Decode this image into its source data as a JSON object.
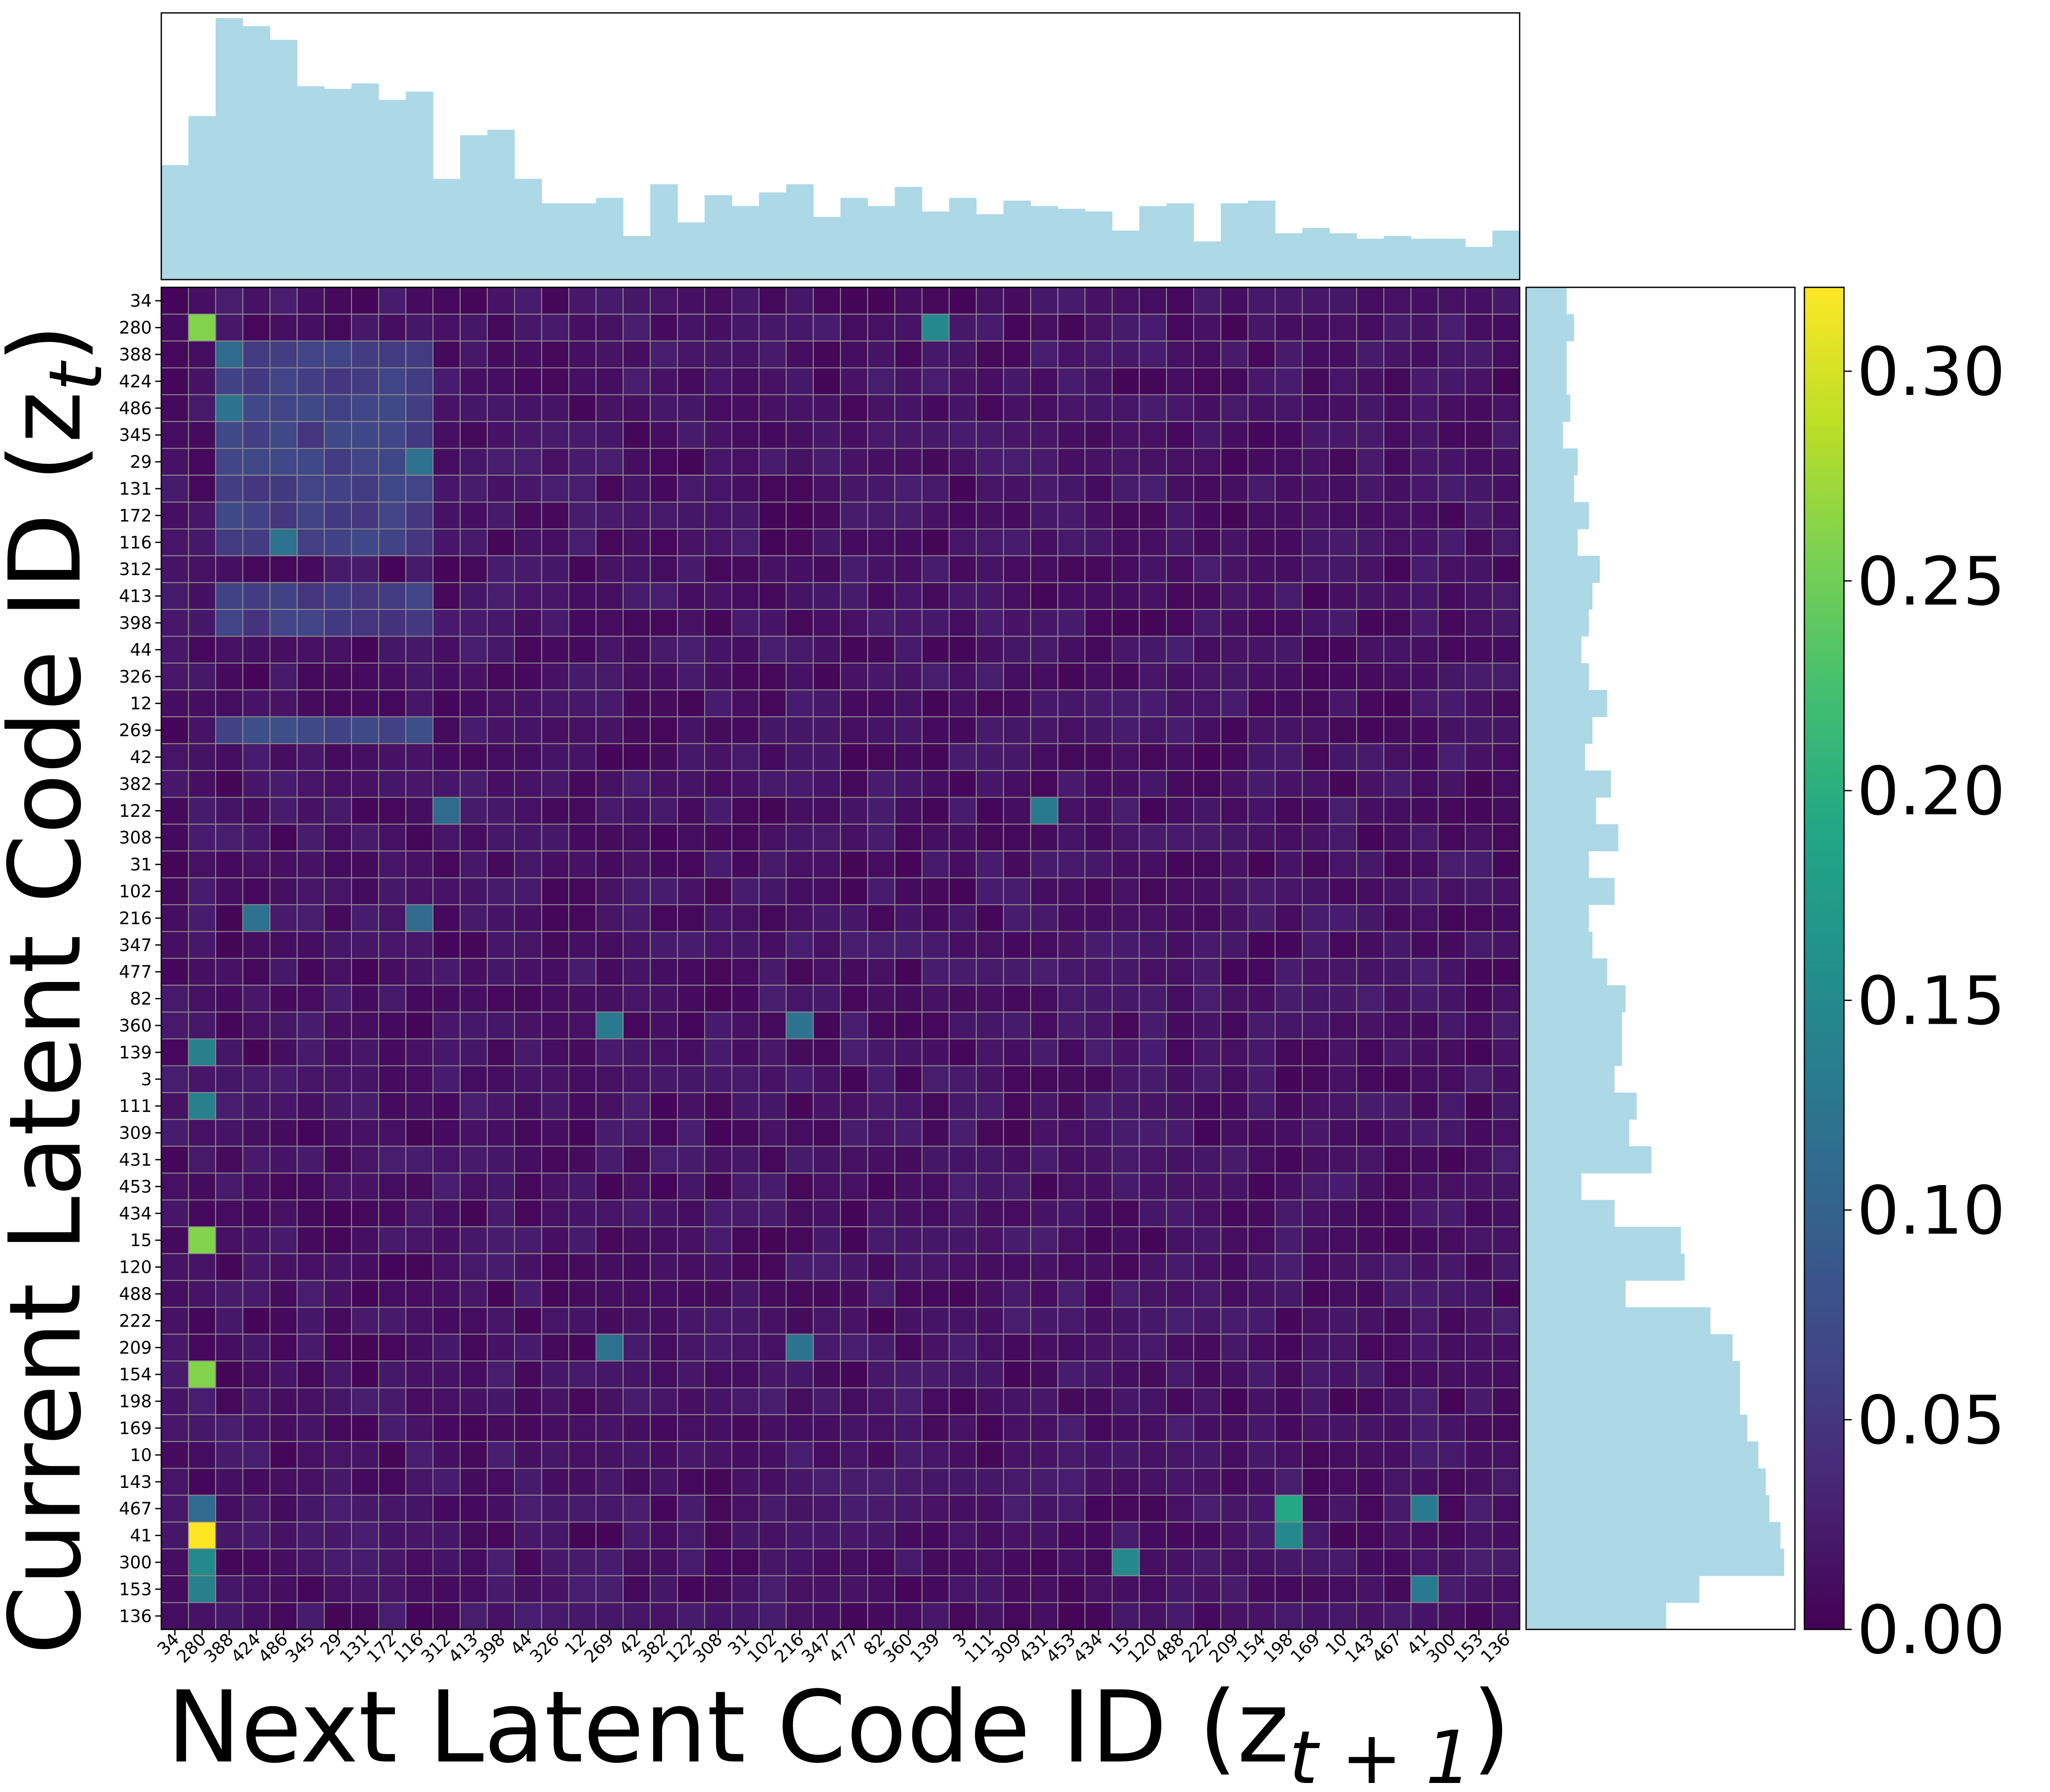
{
  "chart_data": {
    "type": "heatmap",
    "title": "",
    "xlabel": "Next Latent Code ID (z",
    "xlabel_sub": "t + 1",
    "xlabel_close": ")",
    "ylabel": "Current Latent Code ID (z",
    "ylabel_sub": "t",
    "ylabel_close": ")",
    "codes": [
      "34",
      "280",
      "388",
      "424",
      "486",
      "345",
      "29",
      "131",
      "172",
      "116",
      "312",
      "413",
      "398",
      "44",
      "326",
      "12",
      "269",
      "42",
      "382",
      "122",
      "308",
      "31",
      "102",
      "216",
      "347",
      "477",
      "82",
      "360",
      "139",
      "3",
      "111",
      "309",
      "431",
      "453",
      "434",
      "15",
      "120",
      "488",
      "222",
      "209",
      "154",
      "198",
      "169",
      "10",
      "143",
      "467",
      "41",
      "300",
      "153",
      "136"
    ],
    "colorbar": {
      "colormap": "viridis",
      "range": [
        0.0,
        0.32
      ],
      "ticks": [
        "0.00",
        "0.05",
        "0.10",
        "0.15",
        "0.20",
        "0.25",
        "0.30"
      ]
    },
    "top_histogram": {
      "color": "#add8e6",
      "values": [
        42,
        60,
        96,
        93,
        88,
        71,
        70,
        72,
        66,
        69,
        37,
        53,
        55,
        37,
        28,
        28,
        30,
        16,
        35,
        21,
        31,
        27,
        32,
        35,
        23,
        30,
        27,
        34,
        25,
        30,
        24,
        29,
        27,
        26,
        25,
        18,
        27,
        28,
        14,
        28,
        29,
        17,
        19,
        17,
        15,
        16,
        15,
        15,
        12,
        18
      ]
    },
    "right_histogram": {
      "color": "#add8e6",
      "values": [
        11,
        13,
        11,
        11,
        12,
        10,
        14,
        13,
        17,
        14,
        20,
        18,
        17,
        15,
        17,
        22,
        18,
        16,
        23,
        19,
        25,
        17,
        24,
        17,
        18,
        22,
        27,
        26,
        26,
        24,
        30,
        28,
        34,
        15,
        24,
        42,
        43,
        27,
        50,
        56,
        58,
        58,
        60,
        63,
        65,
        66,
        69,
        70,
        47,
        38
      ]
    },
    "hot_cells": [
      {
        "row": "280",
        "col": "280",
        "value": 0.26
      },
      {
        "row": "15",
        "col": "280",
        "value": 0.26
      },
      {
        "row": "154",
        "col": "280",
        "value": 0.26
      },
      {
        "row": "41",
        "col": "280",
        "value": 0.32
      },
      {
        "row": "300",
        "col": "280",
        "value": 0.15
      },
      {
        "row": "153",
        "col": "280",
        "value": 0.14
      },
      {
        "row": "139",
        "col": "280",
        "value": 0.14
      },
      {
        "row": "111",
        "col": "280",
        "value": 0.14
      },
      {
        "row": "467",
        "col": "280",
        "value": 0.11
      },
      {
        "row": "280",
        "col": "139",
        "value": 0.15
      },
      {
        "row": "467",
        "col": "198",
        "value": 0.19
      },
      {
        "row": "41",
        "col": "198",
        "value": 0.15
      },
      {
        "row": "300",
        "col": "15",
        "value": 0.15
      },
      {
        "row": "467",
        "col": "41",
        "value": 0.13
      },
      {
        "row": "153",
        "col": "41",
        "value": 0.13
      },
      {
        "row": "122",
        "col": "431",
        "value": 0.13
      },
      {
        "row": "209",
        "col": "269",
        "value": 0.12
      },
      {
        "row": "209",
        "col": "216",
        "value": 0.12
      },
      {
        "row": "360",
        "col": "269",
        "value": 0.13
      },
      {
        "row": "360",
        "col": "216",
        "value": 0.12
      },
      {
        "row": "122",
        "col": "312",
        "value": 0.11
      },
      {
        "row": "388",
        "col": "388",
        "value": 0.11
      },
      {
        "row": "486",
        "col": "388",
        "value": 0.12
      },
      {
        "row": "116",
        "col": "486",
        "value": 0.12
      },
      {
        "row": "29",
        "col": "116",
        "value": 0.12
      },
      {
        "row": "216",
        "col": "424",
        "value": 0.12
      },
      {
        "row": "216",
        "col": "116",
        "value": 0.11
      }
    ]
  }
}
